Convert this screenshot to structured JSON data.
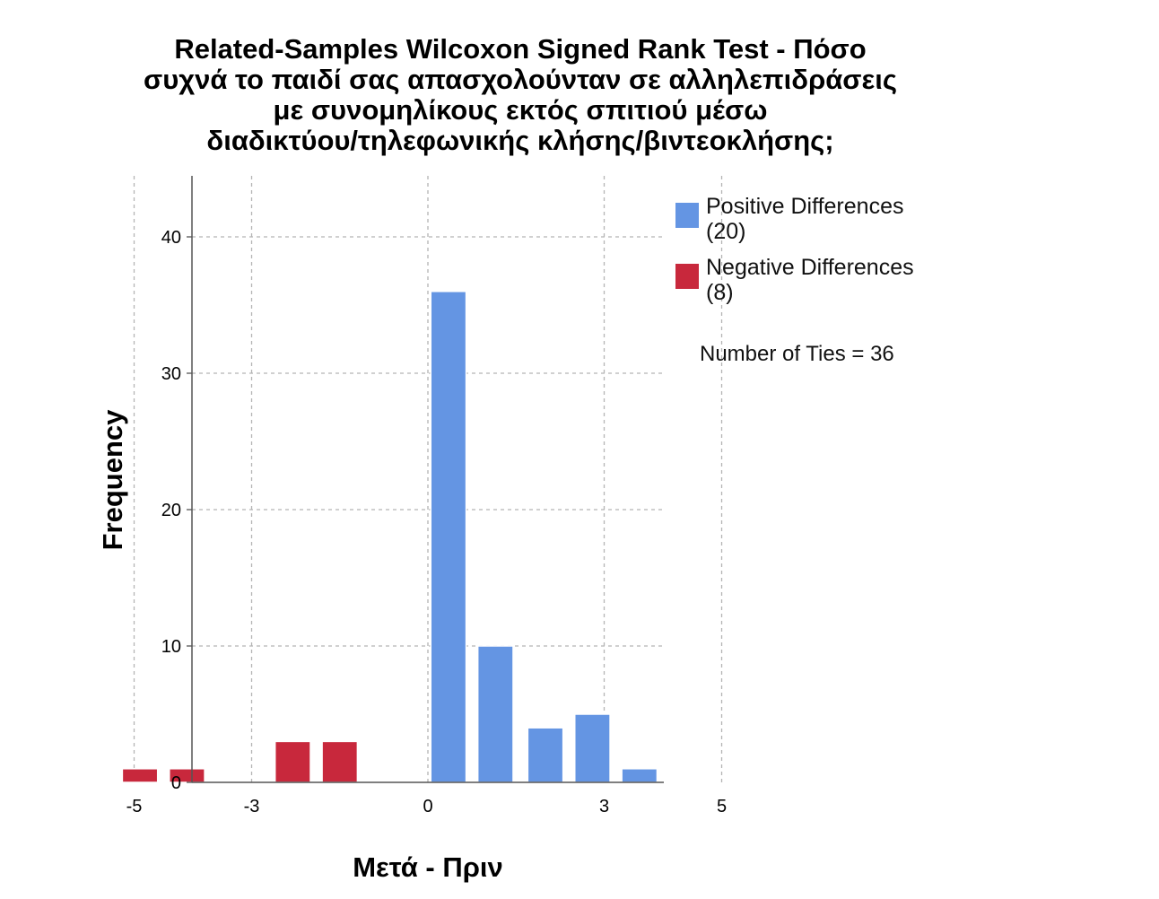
{
  "chart_data": {
    "type": "bar",
    "title_lines": [
      "Related-Samples Wilcoxon Signed Rank Test - Πόσο",
      "συχνά το παιδί σας απασχολούνταν σε αλληλεπιδράσεις",
      "με συνομηλίκους εκτός σπιτιού μέσω",
      "διαδικτύου/τηλεφωνικής κλήσης/βιντεοκλήσης;"
    ],
    "xlabel": "Μετά - Πριν",
    "ylabel": "Frequency",
    "x_ticks": [
      "-5",
      "-3",
      "0",
      "3",
      "5"
    ],
    "y_ticks": [
      "0",
      "10",
      "20",
      "30",
      "40"
    ],
    "ylim": [
      0,
      44
    ],
    "grid": true,
    "legend_position": "top-right",
    "colors": {
      "positive": "#6495E3",
      "negative": "#C8283C"
    },
    "bins": [
      {
        "x": -4.9,
        "value": 1,
        "group": "negative"
      },
      {
        "x": -4.1,
        "value": 1,
        "group": "negative"
      },
      {
        "x": -2.3,
        "value": 3,
        "group": "negative"
      },
      {
        "x": -1.5,
        "value": 3,
        "group": "negative"
      },
      {
        "x": 0.35,
        "value": 36,
        "group": "positive"
      },
      {
        "x": 1.15,
        "value": 10,
        "group": "positive"
      },
      {
        "x": 2.0,
        "value": 4,
        "group": "positive"
      },
      {
        "x": 2.8,
        "value": 5,
        "group": "positive"
      },
      {
        "x": 3.6,
        "value": 1,
        "group": "positive"
      }
    ],
    "legend": [
      {
        "key": "positive",
        "line1": "Positive Differences",
        "line2": "(20)"
      },
      {
        "key": "negative",
        "line1": "Negative Differences",
        "line2": "(8)"
      }
    ],
    "annotation": "Number of Ties = 36"
  }
}
